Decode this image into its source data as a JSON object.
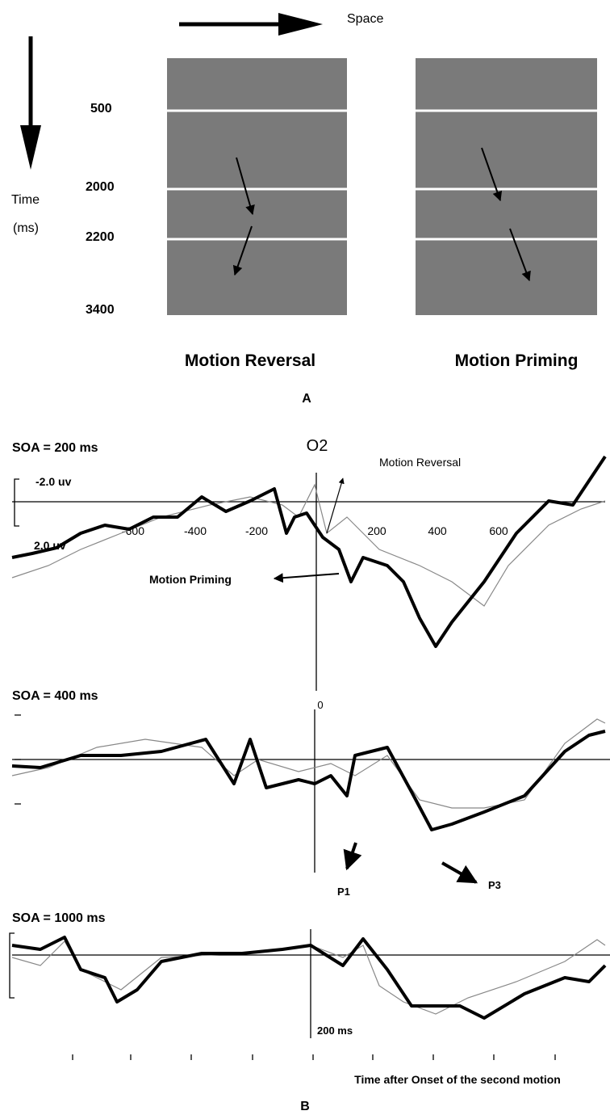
{
  "panel_a": {
    "space_label": "Space",
    "time_label": "Time",
    "time_unit": "(ms)",
    "time_marks": [
      "500",
      "2000",
      "2200",
      "3400"
    ],
    "left_title": "Motion Reversal",
    "right_title": "Motion Priming",
    "label": "A"
  },
  "panel_b": {
    "channel": "O2",
    "label": "B",
    "x_axis_title": "Time after Onset of the second motion",
    "plots": [
      {
        "title": "SOA = 200 ms",
        "scale_top": "-2.0 uv",
        "scale_bottom": "2.0 uv",
        "x_ticks": [
          "-600",
          "-400",
          "-200",
          "200",
          "400",
          "600"
        ],
        "zero": "0",
        "annotations": [
          "Motion Reversal",
          "Motion Priming"
        ]
      },
      {
        "title": "SOA = 400 ms",
        "annotations": [
          "P1",
          "P3"
        ]
      },
      {
        "title": "SOA = 1000 ms",
        "scale": "200 ms"
      }
    ]
  }
}
